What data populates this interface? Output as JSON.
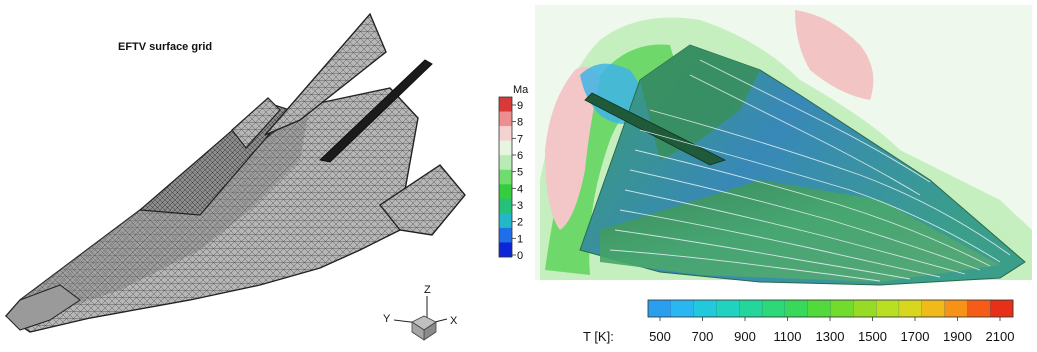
{
  "left_panel": {
    "title": "EFTV surface grid",
    "axes": {
      "z": "Z",
      "y": "Y",
      "x": "X"
    }
  },
  "right_panel": {
    "mach_legend": {
      "title": "Ma",
      "ticks": [
        "9",
        "8",
        "7",
        "6",
        "5",
        "4",
        "3",
        "2",
        "1",
        "0"
      ],
      "colors": [
        "#d83a3a",
        "#ee8f8f",
        "#f4d2d2",
        "#e6f4e0",
        "#b9ebb4",
        "#6fdc6d",
        "#34cd40",
        "#25c07a",
        "#22b8c9",
        "#1f6fe8",
        "#0c26d6"
      ]
    },
    "temperature_legend": {
      "label": "T [K]:",
      "ticks": [
        "500",
        "700",
        "900",
        "1100",
        "1300",
        "1500",
        "1700",
        "1900",
        "2100"
      ],
      "colors": [
        "#2a9ff0",
        "#2ab6f0",
        "#22c8dc",
        "#20d2c0",
        "#24d69c",
        "#2cd878",
        "#38d85a",
        "#52da3c",
        "#72dc2e",
        "#96dc26",
        "#bade22",
        "#d8d61e",
        "#f0ba1a",
        "#f79218",
        "#f45c18",
        "#e83018"
      ]
    }
  }
}
